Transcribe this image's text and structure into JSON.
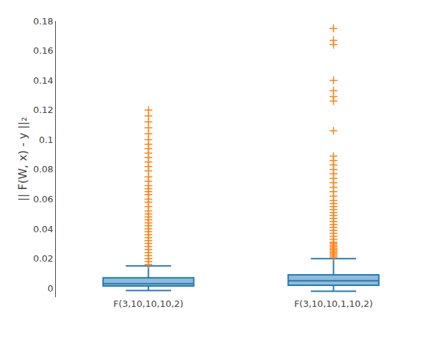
{
  "chart_data": {
    "type": "box",
    "categories": [
      "F(3,10,10,10,2)",
      "F(3,10,10,1,10,2)"
    ],
    "ylabel": "|| F(W, x) - y ||₂",
    "ylim": [
      -0.006,
      0.18
    ],
    "yticks": [
      0,
      0.02,
      0.04,
      0.06,
      0.08,
      0.1,
      0.12,
      0.14,
      0.16,
      0.18
    ],
    "grid": false,
    "marker": "+",
    "q1": [
      0.0015,
      0.002
    ],
    "median": [
      0.003,
      0.005
    ],
    "q3": [
      0.007,
      0.009
    ],
    "whisker_low": [
      -0.0015,
      -0.002
    ],
    "whisker_high": [
      0.015,
      0.02
    ],
    "outliers": [
      [
        0.016,
        0.018,
        0.02,
        0.022,
        0.024,
        0.026,
        0.028,
        0.03,
        0.032,
        0.034,
        0.036,
        0.038,
        0.04,
        0.042,
        0.044,
        0.046,
        0.048,
        0.05,
        0.052,
        0.055,
        0.058,
        0.06,
        0.063,
        0.065,
        0.067,
        0.069,
        0.072,
        0.075,
        0.079,
        0.082,
        0.085,
        0.088,
        0.091,
        0.094,
        0.097,
        0.1,
        0.104,
        0.108,
        0.112,
        0.116,
        0.12
      ],
      [
        0.021,
        0.022,
        0.023,
        0.024,
        0.025,
        0.026,
        0.027,
        0.028,
        0.029,
        0.03,
        0.031,
        0.033,
        0.035,
        0.037,
        0.039,
        0.041,
        0.043,
        0.045,
        0.047,
        0.049,
        0.051,
        0.053,
        0.055,
        0.057,
        0.059,
        0.062,
        0.065,
        0.068,
        0.071,
        0.074,
        0.077,
        0.08,
        0.083,
        0.086,
        0.089,
        0.106,
        0.126,
        0.129,
        0.133,
        0.14,
        0.164,
        0.167,
        0.175
      ]
    ]
  }
}
